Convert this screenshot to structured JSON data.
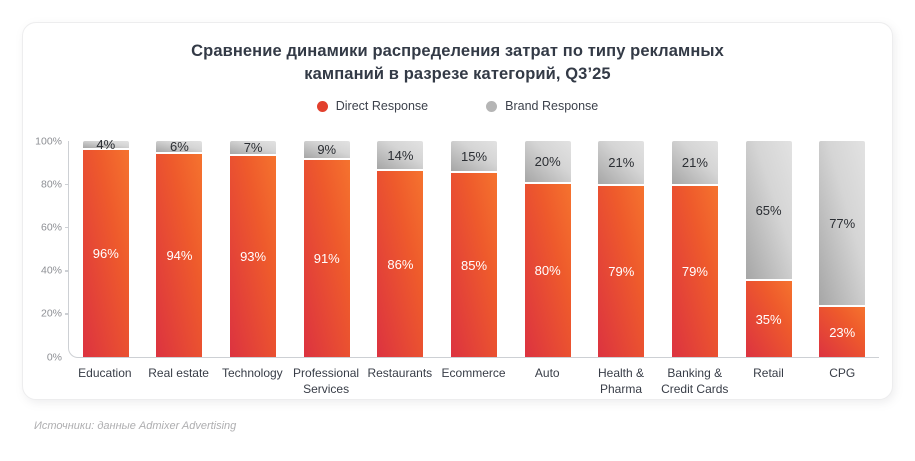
{
  "page": {
    "source_note": "Источники: данные Admixer Advertising"
  },
  "chart_data": {
    "type": "bar",
    "stacked": true,
    "percent_scale": true,
    "title": "Сравнение динамики распределения затрат по типу рекламных кампаний в разрезе категорий, Q3’25",
    "title_lines": [
      "Сравнение динамики распределения затрат по типу рекламных",
      "кампаний в разрезе категорий, Q3’25"
    ],
    "categories": [
      "Education",
      "Real estate",
      "Technology",
      "Professional Services",
      "Restaurants",
      "Ecommerce",
      "Auto",
      "Health & Pharma",
      "Banking & Credit Cards",
      "Retail",
      "CPG"
    ],
    "series": [
      {
        "name": "Direct Response",
        "color": "#E2402D",
        "values": [
          96,
          94,
          93,
          91,
          86,
          85,
          80,
          79,
          79,
          35,
          23
        ]
      },
      {
        "name": "Brand Response",
        "color": "#B5B5B5",
        "values": [
          4,
          6,
          7,
          9,
          14,
          15,
          20,
          21,
          21,
          65,
          77
        ]
      }
    ],
    "value_suffix": "%",
    "y_axis": {
      "min": 0,
      "max": 100,
      "tick_step": 20,
      "tick_labels": [
        "0%",
        "20%",
        "40%",
        "60%",
        "80%",
        "100%"
      ]
    },
    "legend_position": "top-center",
    "grid": false
  }
}
